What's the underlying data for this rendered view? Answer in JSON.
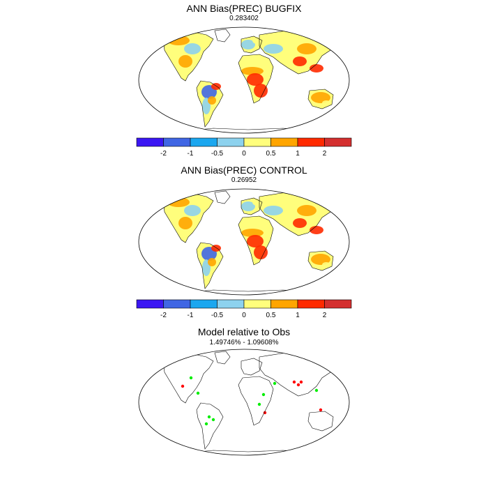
{
  "panels": [
    {
      "title": "ANN Bias(PREC) BUGFIX",
      "subtitle": "0.283402"
    },
    {
      "title": "ANN Bias(PREC) CONTROL",
      "subtitle": "0.26952"
    },
    {
      "title": "Model relative to Obs",
      "subtitle": "1.49746% - 1.09608%"
    }
  ],
  "colorbar": {
    "colors": [
      "#3b16f3",
      "#4066e4",
      "#1ba7ef",
      "#8dd2ee",
      "#fffe7c",
      "#ffa500",
      "#ff2a00",
      "#d42f2f"
    ],
    "tick_labels": [
      "-2",
      "-1",
      "-0.5",
      "0",
      "0.5",
      "1",
      "2"
    ]
  },
  "palette": {
    "wet_strong": "#d42f2f",
    "wet": "#ff2a00",
    "wet_mild": "#ffa500",
    "near_zero_pos": "#fffe7c",
    "near_zero_neg": "#8dd2ee",
    "dry_mild": "#1ba7ef",
    "dry": "#4066e4",
    "dry_strong": "#3b16f3",
    "model_better": "#ff0000",
    "obs_better": "#00ee00"
  }
}
